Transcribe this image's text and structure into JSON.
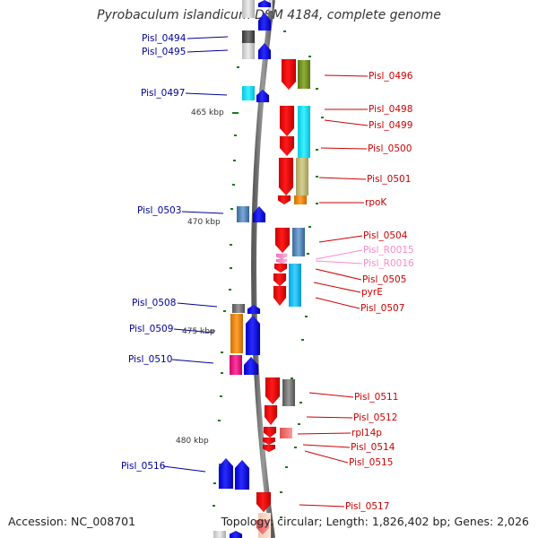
{
  "title": "Pyrobaculum islandicum DSM 4184, complete genome",
  "footer": {
    "accession": "Accession: NC_008701",
    "topology": "Topology: circular; Length: 1,826,402 bp; Genes: 2,026"
  },
  "colors": {
    "blue": "#0000ff",
    "red": "#ff0000",
    "pink": "#ff88cc",
    "backbone": "#7a7a7a",
    "tick": "#1a7a1a",
    "label_left": "#000099",
    "label_right": "#cc0000",
    "label_pink": "#ff88cc"
  },
  "scale_labels": [
    "465 kbp",
    "470 kbp",
    "475 kbp",
    "480 kbp"
  ],
  "genes": [
    {
      "name": "Pisl_0494",
      "strand": "left",
      "color": "blue"
    },
    {
      "name": "Pisl_0495",
      "strand": "left",
      "color": "blue"
    },
    {
      "name": "Pisl_0496",
      "strand": "right",
      "color": "red"
    },
    {
      "name": "Pisl_0497",
      "strand": "left",
      "color": "blue"
    },
    {
      "name": "Pisl_0498",
      "strand": "right",
      "color": "red"
    },
    {
      "name": "Pisl_0499",
      "strand": "right",
      "color": "red"
    },
    {
      "name": "Pisl_0500",
      "strand": "right",
      "color": "red"
    },
    {
      "name": "Pisl_0501",
      "strand": "right",
      "color": "red"
    },
    {
      "name": "rpoK",
      "strand": "right",
      "color": "red"
    },
    {
      "name": "Pisl_0503",
      "strand": "left",
      "color": "blue"
    },
    {
      "name": "Pisl_0504",
      "strand": "right",
      "color": "red"
    },
    {
      "name": "Pisl_R0015",
      "strand": "right",
      "color": "pink"
    },
    {
      "name": "Pisl_R0016",
      "strand": "right",
      "color": "pink"
    },
    {
      "name": "Pisl_0505",
      "strand": "right",
      "color": "red"
    },
    {
      "name": "pyrE",
      "strand": "right",
      "color": "red"
    },
    {
      "name": "Pisl_0507",
      "strand": "right",
      "color": "red"
    },
    {
      "name": "Pisl_0508",
      "strand": "left",
      "color": "blue"
    },
    {
      "name": "Pisl_0509",
      "strand": "left",
      "color": "blue"
    },
    {
      "name": "Pisl_0510",
      "strand": "left",
      "color": "blue"
    },
    {
      "name": "Pisl_0511",
      "strand": "right",
      "color": "red"
    },
    {
      "name": "Pisl_0512",
      "strand": "right",
      "color": "red"
    },
    {
      "name": "rpl14p",
      "strand": "right",
      "color": "red"
    },
    {
      "name": "Pisl_0514",
      "strand": "right",
      "color": "red"
    },
    {
      "name": "Pisl_0515",
      "strand": "right",
      "color": "red"
    },
    {
      "name": "Pisl_0516",
      "strand": "left",
      "color": "blue"
    },
    {
      "name": "Pisl_0517",
      "strand": "right",
      "color": "red"
    }
  ]
}
